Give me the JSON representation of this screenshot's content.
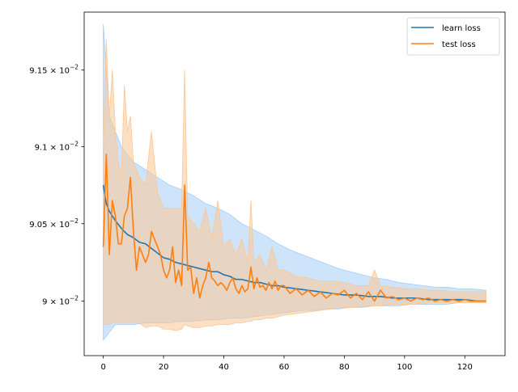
{
  "chart_data": {
    "type": "line",
    "title": "",
    "xlabel": "",
    "ylabel": "",
    "xlim": [
      -6.35,
      133.35
    ],
    "ylim": [
      0.08965,
      0.09188
    ],
    "y_scale": "log",
    "x_ticks": [
      0,
      20,
      40,
      60,
      80,
      100,
      120
    ],
    "x_tick_labels": [
      "0",
      "20",
      "40",
      "60",
      "80",
      "100",
      "120"
    ],
    "y_ticks": [
      0.09,
      0.0905,
      0.091,
      0.0915
    ],
    "y_tick_labels": [
      {
        "mantissa": "9",
        "sep": " × 10",
        "exp": "−2"
      },
      {
        "mantissa": "9.05",
        "sep": " × 10",
        "exp": "−2"
      },
      {
        "mantissa": "9.1",
        "sep": " × 10",
        "exp": "−2"
      },
      {
        "mantissa": "9.15",
        "sep": " × 10",
        "exp": "−2"
      }
    ],
    "grid": false,
    "legend_position": "upper right",
    "colors": {
      "learn": "#1f77b4",
      "learn_band": "#a5cef6",
      "test": "#ff7f0e",
      "test_band": "#fbc794",
      "axis": "#000000",
      "background": "#ffffff"
    },
    "series": [
      {
        "name": "learn loss",
        "color": "#1f77b4",
        "points": [
          [
            0,
            0.09075
          ],
          [
            1,
            0.09063
          ],
          [
            2,
            0.09058
          ],
          [
            4,
            0.09052
          ],
          [
            6,
            0.09047
          ],
          [
            8,
            0.09043
          ],
          [
            10,
            0.09041
          ],
          [
            12,
            0.09038
          ],
          [
            14,
            0.09037
          ],
          [
            16,
            0.09034
          ],
          [
            18,
            0.09031
          ],
          [
            20,
            0.09028
          ],
          [
            22,
            0.09027
          ],
          [
            24,
            0.09025
          ],
          [
            26,
            0.09024
          ],
          [
            28,
            0.09023
          ],
          [
            30,
            0.09022
          ],
          [
            32,
            0.09021
          ],
          [
            34,
            0.0902
          ],
          [
            36,
            0.09019
          ],
          [
            38,
            0.09019
          ],
          [
            40,
            0.09017
          ],
          [
            42,
            0.09016
          ],
          [
            44,
            0.09014
          ],
          [
            46,
            0.09014
          ],
          [
            48,
            0.09013
          ],
          [
            50,
            0.09012
          ],
          [
            52,
            0.09012
          ],
          [
            54,
            0.09011
          ],
          [
            56,
            0.0901
          ],
          [
            58,
            0.0901
          ],
          [
            60,
            0.09009
          ],
          [
            64,
            0.09008
          ],
          [
            68,
            0.09007
          ],
          [
            72,
            0.09006
          ],
          [
            76,
            0.09005
          ],
          [
            80,
            0.09004
          ],
          [
            84,
            0.09004
          ],
          [
            88,
            0.09003
          ],
          [
            92,
            0.09003
          ],
          [
            96,
            0.09002
          ],
          [
            100,
            0.09002
          ],
          [
            104,
            0.09002
          ],
          [
            108,
            0.09001
          ],
          [
            112,
            0.09001
          ],
          [
            116,
            0.09001
          ],
          [
            120,
            0.09001
          ],
          [
            124,
            0.09
          ],
          [
            127,
            0.09
          ]
        ],
        "band": [
          [
            0,
            0.08975,
            0.0918
          ],
          [
            2,
            0.0898,
            0.0912
          ],
          [
            4,
            0.08985,
            0.0911
          ],
          [
            6,
            0.08985,
            0.091
          ],
          [
            8,
            0.08985,
            0.09095
          ],
          [
            10,
            0.08985,
            0.0909
          ],
          [
            14,
            0.08986,
            0.09085
          ],
          [
            18,
            0.08986,
            0.0908
          ],
          [
            22,
            0.08986,
            0.09075
          ],
          [
            26,
            0.08987,
            0.09072
          ],
          [
            30,
            0.08987,
            0.09068
          ],
          [
            34,
            0.08988,
            0.09063
          ],
          [
            38,
            0.08988,
            0.0906
          ],
          [
            42,
            0.08989,
            0.09056
          ],
          [
            46,
            0.08989,
            0.0905
          ],
          [
            50,
            0.0899,
            0.09046
          ],
          [
            54,
            0.08991,
            0.09042
          ],
          [
            58,
            0.08992,
            0.09037
          ],
          [
            62,
            0.08993,
            0.09033
          ],
          [
            66,
            0.08994,
            0.0903
          ],
          [
            70,
            0.08994,
            0.09027
          ],
          [
            74,
            0.08995,
            0.09024
          ],
          [
            78,
            0.08995,
            0.09021
          ],
          [
            82,
            0.08996,
            0.09019
          ],
          [
            86,
            0.08996,
            0.09017
          ],
          [
            90,
            0.08997,
            0.09015
          ],
          [
            94,
            0.08997,
            0.09014
          ],
          [
            98,
            0.08997,
            0.09012
          ],
          [
            102,
            0.08998,
            0.09011
          ],
          [
            106,
            0.08998,
            0.0901
          ],
          [
            110,
            0.08998,
            0.09009
          ],
          [
            114,
            0.08998,
            0.09009
          ],
          [
            118,
            0.08999,
            0.09008
          ],
          [
            122,
            0.08999,
            0.09008
          ],
          [
            127,
            0.08999,
            0.09007
          ]
        ]
      },
      {
        "name": "test loss",
        "color": "#ff7f0e",
        "points": [
          [
            0,
            0.09035
          ],
          [
            1,
            0.09095
          ],
          [
            2,
            0.0903
          ],
          [
            3,
            0.09065
          ],
          [
            4,
            0.09055
          ],
          [
            5,
            0.09037
          ],
          [
            6,
            0.09037
          ],
          [
            7,
            0.09055
          ],
          [
            8,
            0.0906
          ],
          [
            9,
            0.0908
          ],
          [
            10,
            0.09045
          ],
          [
            11,
            0.0902
          ],
          [
            12,
            0.09035
          ],
          [
            13,
            0.0903
          ],
          [
            14,
            0.09025
          ],
          [
            15,
            0.0903
          ],
          [
            16,
            0.09045
          ],
          [
            17,
            0.0904
          ],
          [
            18,
            0.09035
          ],
          [
            19,
            0.0903
          ],
          [
            20,
            0.0902
          ],
          [
            21,
            0.09015
          ],
          [
            22,
            0.0902
          ],
          [
            23,
            0.09035
          ],
          [
            24,
            0.09012
          ],
          [
            25,
            0.0902
          ],
          [
            26,
            0.0901
          ],
          [
            27,
            0.09075
          ],
          [
            28,
            0.0902
          ],
          [
            29,
            0.09022
          ],
          [
            30,
            0.09005
          ],
          [
            31,
            0.09015
          ],
          [
            32,
            0.09002
          ],
          [
            33,
            0.0901
          ],
          [
            34,
            0.09015
          ],
          [
            35,
            0.09025
          ],
          [
            36,
            0.09015
          ],
          [
            37,
            0.09013
          ],
          [
            38,
            0.0901
          ],
          [
            39,
            0.09012
          ],
          [
            40,
            0.0901
          ],
          [
            41,
            0.09007
          ],
          [
            42,
            0.09012
          ],
          [
            43,
            0.09015
          ],
          [
            44,
            0.09008
          ],
          [
            45,
            0.09005
          ],
          [
            46,
            0.0901
          ],
          [
            47,
            0.09006
          ],
          [
            48,
            0.09008
          ],
          [
            49,
            0.09022
          ],
          [
            50,
            0.09008
          ],
          [
            51,
            0.09015
          ],
          [
            52,
            0.09009
          ],
          [
            53,
            0.0901
          ],
          [
            54,
            0.09007
          ],
          [
            55,
            0.09012
          ],
          [
            56,
            0.09008
          ],
          [
            57,
            0.09013
          ],
          [
            58,
            0.09007
          ],
          [
            59,
            0.0901
          ],
          [
            60,
            0.0901
          ],
          [
            62,
            0.09005
          ],
          [
            64,
            0.09008
          ],
          [
            66,
            0.09004
          ],
          [
            68,
            0.09007
          ],
          [
            70,
            0.09003
          ],
          [
            72,
            0.09006
          ],
          [
            74,
            0.09002
          ],
          [
            76,
            0.09005
          ],
          [
            78,
            0.09004
          ],
          [
            80,
            0.09007
          ],
          [
            82,
            0.09002
          ],
          [
            84,
            0.09005
          ],
          [
            86,
            0.09001
          ],
          [
            88,
            0.09006
          ],
          [
            90,
            0.09
          ],
          [
            92,
            0.09007
          ],
          [
            94,
            0.09002
          ],
          [
            96,
            0.09003
          ],
          [
            98,
            0.09001
          ],
          [
            100,
            0.09002
          ],
          [
            102,
            0.09
          ],
          [
            104,
            0.09002
          ],
          [
            106,
            0.09001
          ],
          [
            108,
            0.09002
          ],
          [
            110,
            0.09
          ],
          [
            112,
            0.09001
          ],
          [
            114,
            0.09
          ],
          [
            116,
            0.09001
          ],
          [
            118,
            0.09
          ],
          [
            120,
            0.09001
          ],
          [
            122,
            0.09
          ],
          [
            124,
            0.09
          ],
          [
            127,
            0.09
          ]
        ],
        "band": [
          [
            0,
            0.08985,
            0.091
          ],
          [
            1,
            0.08985,
            0.0917
          ],
          [
            2,
            0.08985,
            0.0912
          ],
          [
            3,
            0.08986,
            0.0915
          ],
          [
            4,
            0.08986,
            0.0911
          ],
          [
            5,
            0.08986,
            0.0909
          ],
          [
            6,
            0.08986,
            0.0908
          ],
          [
            7,
            0.08986,
            0.0914
          ],
          [
            8,
            0.08986,
            0.0911
          ],
          [
            9,
            0.08986,
            0.0912
          ],
          [
            10,
            0.08986,
            0.0909
          ],
          [
            12,
            0.08986,
            0.0908
          ],
          [
            14,
            0.08983,
            0.09075
          ],
          [
            16,
            0.08984,
            0.0911
          ],
          [
            18,
            0.08984,
            0.0907
          ],
          [
            20,
            0.08982,
            0.0906
          ],
          [
            22,
            0.08982,
            0.0906
          ],
          [
            24,
            0.08981,
            0.0906
          ],
          [
            26,
            0.08982,
            0.0906
          ],
          [
            27,
            0.08985,
            0.0915
          ],
          [
            28,
            0.08984,
            0.09055
          ],
          [
            30,
            0.08983,
            0.0905
          ],
          [
            32,
            0.08983,
            0.09045
          ],
          [
            34,
            0.08984,
            0.0906
          ],
          [
            36,
            0.08984,
            0.0904
          ],
          [
            38,
            0.08985,
            0.09065
          ],
          [
            40,
            0.08985,
            0.09035
          ],
          [
            42,
            0.08985,
            0.0904
          ],
          [
            44,
            0.08986,
            0.0903
          ],
          [
            46,
            0.08986,
            0.0904
          ],
          [
            48,
            0.08987,
            0.09025
          ],
          [
            49,
            0.08987,
            0.09065
          ],
          [
            50,
            0.08988,
            0.09025
          ],
          [
            52,
            0.08988,
            0.0903
          ],
          [
            54,
            0.08989,
            0.0902
          ],
          [
            56,
            0.08989,
            0.09035
          ],
          [
            58,
            0.0899,
            0.0902
          ],
          [
            60,
            0.08991,
            0.0902
          ],
          [
            64,
            0.08992,
            0.09016
          ],
          [
            68,
            0.08993,
            0.09015
          ],
          [
            72,
            0.08994,
            0.09013
          ],
          [
            76,
            0.08995,
            0.09013
          ],
          [
            80,
            0.08996,
            0.09012
          ],
          [
            84,
            0.08996,
            0.0901
          ],
          [
            88,
            0.08997,
            0.0901
          ],
          [
            90,
            0.08997,
            0.0902
          ],
          [
            92,
            0.08997,
            0.0901
          ],
          [
            96,
            0.08998,
            0.09009
          ],
          [
            100,
            0.08998,
            0.09008
          ],
          [
            104,
            0.08998,
            0.09008
          ],
          [
            108,
            0.08999,
            0.09007
          ],
          [
            112,
            0.08999,
            0.09007
          ],
          [
            116,
            0.08999,
            0.09006
          ],
          [
            120,
            0.08999,
            0.09006
          ],
          [
            124,
            0.08999,
            0.09006
          ],
          [
            127,
            0.08999,
            0.09006
          ]
        ]
      }
    ]
  }
}
